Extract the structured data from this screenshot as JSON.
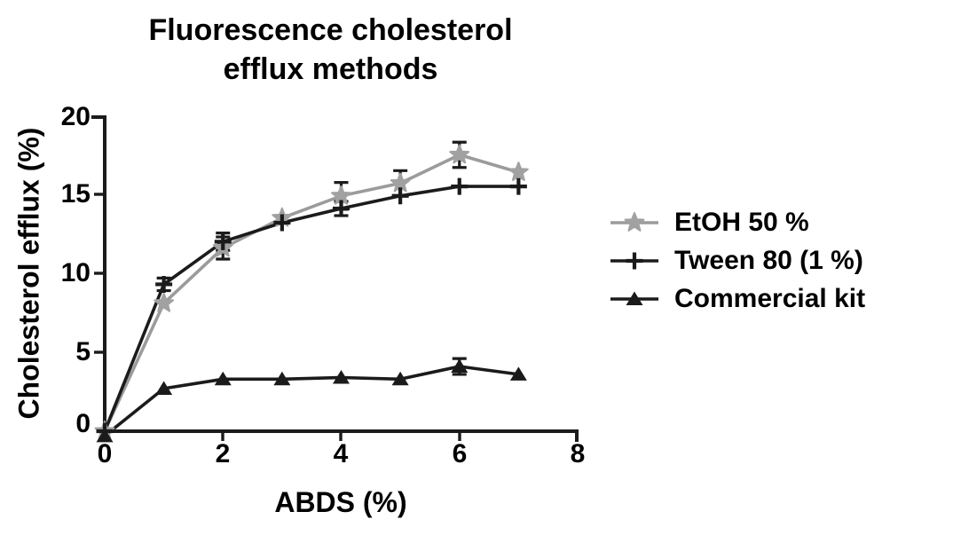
{
  "title": {
    "line1": "Fluorescence cholesterol",
    "line2": "efflux methods"
  },
  "axes": {
    "y_ticks": [
      "20",
      "15",
      "10",
      "5",
      "0"
    ],
    "x_ticks": [
      "0",
      "2",
      "4",
      "6",
      "8"
    ]
  },
  "colors": {
    "black_series": "#1b1b1b",
    "gray_series": "#9b9b9b",
    "error_bar": "#1b1b1b",
    "axis": "#1b1b1b",
    "text": "#000000"
  },
  "chart_data": {
    "type": "line",
    "title": "Fluorescence cholesterol efflux methods",
    "xlabel": "ABDS (%)",
    "ylabel": "Cholesterol efflux (%)",
    "x": [
      0,
      1,
      2,
      3,
      4,
      5,
      6,
      7
    ],
    "xlim": [
      0,
      8
    ],
    "ylim": [
      0,
      20
    ],
    "x_tick_values": [
      0,
      2,
      4,
      6,
      8
    ],
    "y_tick_values": [
      0,
      5,
      10,
      15,
      20
    ],
    "grid": false,
    "legend_position": "right-outside",
    "error_bars": true,
    "series": [
      {
        "name": "EtOH 50 %",
        "marker": "star",
        "color": "#9b9b9b",
        "marker_color": "#a1a1a1",
        "error_color": "#1b1b1b",
        "values": [
          0,
          8.1,
          11.6,
          13.5,
          14.9,
          15.7,
          17.5,
          16.4
        ],
        "errors": [
          0,
          0,
          0.7,
          0,
          0.85,
          0.8,
          0.8,
          0
        ]
      },
      {
        "name": "Tween 80 (1 %)",
        "marker": "plus",
        "color": "#1b1b1b",
        "marker_color": "#1b1b1b",
        "error_color": "#1b1b1b",
        "values": [
          0,
          9.3,
          12.0,
          13.2,
          14.1,
          14.9,
          15.5,
          15.5
        ],
        "errors": [
          0,
          0.4,
          0.55,
          0,
          0.45,
          0,
          0,
          0
        ]
      },
      {
        "name": "Commercial kit",
        "marker": "triangle",
        "color": "#1b1b1b",
        "marker_color": "#1b1b1b",
        "error_color": "#1b1b1b",
        "values": [
          -0.3,
          2.7,
          3.3,
          3.3,
          3.4,
          3.3,
          4.1,
          3.6
        ],
        "errors": [
          0,
          0,
          0,
          0,
          0,
          0,
          0.5,
          0
        ]
      }
    ]
  }
}
